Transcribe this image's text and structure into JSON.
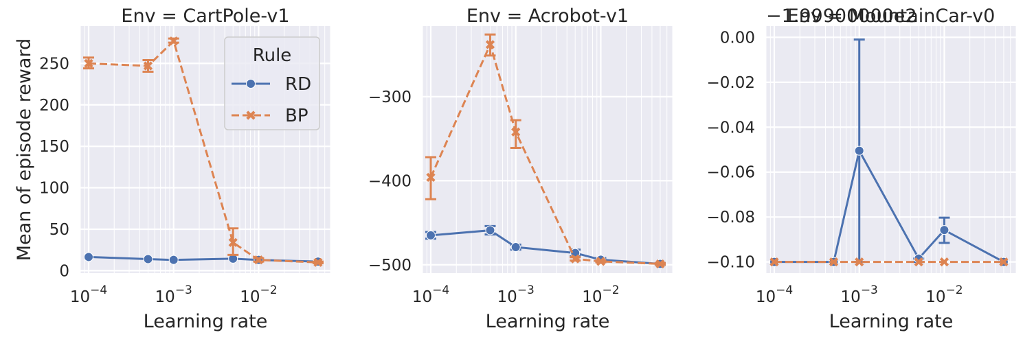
{
  "chart_data": [
    {
      "type": "line",
      "title": "Env = CartPole-v1",
      "xlabel": "Learning rate",
      "ylabel": "Mean of episode reward",
      "xscale": "log",
      "xlim": [
        8e-05,
        0.07
      ],
      "ylim": [
        -3,
        295
      ],
      "yticks": [
        0,
        50,
        100,
        150,
        200,
        250
      ],
      "ytick_labels": [
        "0",
        "50",
        "100",
        "150",
        "200",
        "250"
      ],
      "grid": true,
      "legend": {
        "title": "Rule",
        "placement": "top-right",
        "entries": [
          "RD",
          "BP"
        ]
      },
      "x": [
        0.0001,
        0.0005,
        0.001,
        0.005,
        0.01,
        0.05
      ],
      "series": [
        {
          "name": "RD",
          "values": [
            16.5,
            14,
            13,
            14.5,
            13,
            11
          ],
          "err_low": [
            16.5,
            14,
            13,
            14.5,
            13,
            11
          ],
          "err_high": [
            16.5,
            14,
            13,
            14.5,
            13,
            11
          ]
        },
        {
          "name": "BP",
          "values": [
            250,
            247,
            277,
            34,
            13,
            10
          ],
          "err_low": [
            244,
            240,
            275,
            19,
            11,
            9
          ],
          "err_high": [
            257,
            254,
            280,
            51,
            15,
            11
          ]
        }
      ]
    },
    {
      "type": "line",
      "title": "Env = Acrobot-v1",
      "xlabel": "Learning rate",
      "ylabel": "",
      "xscale": "log",
      "xlim": [
        8e-05,
        0.07
      ],
      "ylim": [
        -510,
        -216
      ],
      "yticks": [
        -500,
        -400,
        -300
      ],
      "ytick_labels": [
        "−500",
        "−400",
        "−300"
      ],
      "grid": true,
      "x": [
        0.0001,
        0.0005,
        0.001,
        0.005,
        0.01,
        0.05
      ],
      "series": [
        {
          "name": "RD",
          "values": [
            -465,
            -459,
            -479,
            -486,
            -494,
            -499
          ],
          "err_low": [
            -469,
            -464,
            -482,
            -490,
            -496,
            -500
          ],
          "err_high": [
            -461,
            -454,
            -476,
            -482,
            -492,
            -498
          ]
        },
        {
          "name": "BP",
          "values": [
            -396,
            -238,
            -342,
            -493,
            -496,
            -499
          ],
          "err_low": [
            -422,
            -251,
            -361,
            -495,
            -497,
            -500
          ],
          "err_high": [
            -372,
            -226,
            -328,
            -491,
            -495,
            -498
          ]
        }
      ]
    },
    {
      "type": "line",
      "title": "Env = MountainCar-v0",
      "offset_text": "−1.99900000e2",
      "xlabel": "Learning rate",
      "ylabel": "",
      "xscale": "log",
      "xlim": [
        8e-05,
        0.07
      ],
      "ylim": [
        -0.105,
        0.005
      ],
      "yticks": [
        -0.1,
        -0.08,
        -0.06,
        -0.04,
        -0.02,
        0.0
      ],
      "ytick_labels": [
        "−0.10",
        "−0.08",
        "−0.06",
        "−0.04",
        "−0.02",
        "0.00"
      ],
      "grid": true,
      "x": [
        0.0001,
        0.0005,
        0.001,
        0.005,
        0.01,
        0.05
      ],
      "series": [
        {
          "name": "RD",
          "values": [
            -0.1,
            -0.1,
            -0.0505,
            -0.0985,
            -0.0858,
            -0.1
          ],
          "err_low": [
            -0.1,
            -0.1,
            -0.1,
            -0.1,
            -0.0915,
            -0.1
          ],
          "err_high": [
            -0.1,
            -0.1,
            -0.001,
            -0.0985,
            -0.0803,
            -0.1
          ]
        },
        {
          "name": "BP",
          "values": [
            -0.1,
            -0.1,
            -0.1,
            -0.1,
            -0.1,
            -0.1
          ],
          "err_low": [
            -0.1,
            -0.1,
            -0.1,
            -0.1,
            -0.1,
            -0.1
          ],
          "err_high": [
            -0.1,
            -0.1,
            -0.1,
            -0.1,
            -0.1,
            -0.1
          ]
        }
      ]
    }
  ],
  "xtick_values": [
    0.0001,
    0.001,
    0.01
  ],
  "xtick_labels": [
    {
      "base": "10",
      "exp": "−4"
    },
    {
      "base": "10",
      "exp": "−3"
    },
    {
      "base": "10",
      "exp": "−2"
    }
  ],
  "colors": {
    "RD": "#4c72b0",
    "BP": "#dd8452",
    "plot_background": "#eaeaf2",
    "grid": "#ffffff",
    "text": "#262626"
  }
}
